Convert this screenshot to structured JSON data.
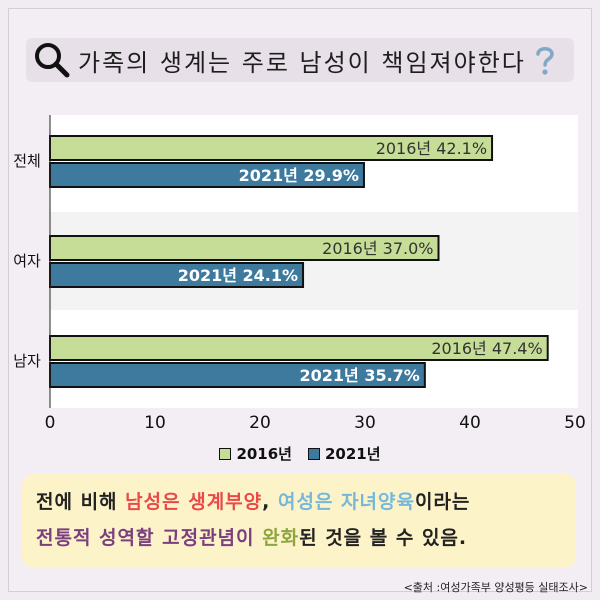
{
  "title": "가족의 생계는 주로 남성이 책임져야한다",
  "colors": {
    "series_2016": "#c6dd97",
    "series_2021": "#3d7a9e",
    "title_bg": "#e7e0e8",
    "note_bg": "#fdf3c8",
    "highlight_red": "#e84a4a",
    "highlight_blue": "#76b8dc",
    "highlight_purple": "#7b3f80",
    "highlight_green": "#8ea63f"
  },
  "icons": {
    "left": "search-icon",
    "right": "question-mark-icon"
  },
  "chart_data": {
    "type": "bar",
    "orientation": "horizontal",
    "categories": [
      "전체",
      "여자",
      "남자"
    ],
    "series": [
      {
        "name": "2016년",
        "values": [
          42.1,
          37.0,
          47.4
        ],
        "labels": [
          "2016년 42.1%",
          "2016년 37.0%",
          "2016년 47.4%"
        ]
      },
      {
        "name": "2021년",
        "values": [
          29.9,
          24.1,
          35.7
        ],
        "labels": [
          "2021년 29.9%",
          "2021년 24.1%",
          "2021년 35.7%"
        ]
      }
    ],
    "xlim": [
      0,
      50
    ],
    "xticks": [
      "0",
      "10",
      "20",
      "30",
      "40",
      "50"
    ],
    "legend_position": "bottom",
    "grid": false
  },
  "note": {
    "line1": [
      {
        "text": "전에 비해 ",
        "style": "plain"
      },
      {
        "text": "남성은 생계부양",
        "style": "red"
      },
      {
        "text": ", ",
        "style": "plain"
      },
      {
        "text": "여성은 자녀양육",
        "style": "blue"
      },
      {
        "text": "이라는",
        "style": "plain"
      }
    ],
    "line2": [
      {
        "text": "전통적 성역할 고정관념이 ",
        "style": "purple"
      },
      {
        "text": "완화",
        "style": "green"
      },
      {
        "text": "된 것을 볼 수 있음.",
        "style": "plain"
      }
    ]
  },
  "source": "<출처 :여성가족부 양성평등 실태조사>"
}
